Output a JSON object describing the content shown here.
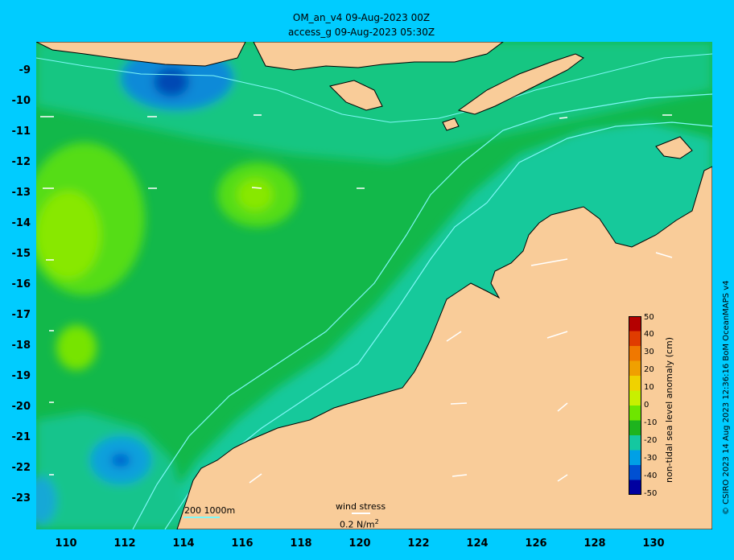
{
  "header": {
    "line1": "OM_an_v4  09-Aug-2023 00Z",
    "line2": "access_g 09-Aug-2023 05:30Z"
  },
  "axes": {
    "y_ticks": [
      "-9",
      "-10",
      "-11",
      "-12",
      "-13",
      "-14",
      "-15",
      "-16",
      "-17",
      "-18",
      "-19",
      "-20",
      "-21",
      "-22",
      "-23"
    ],
    "x_ticks": [
      "110",
      "112",
      "114",
      "116",
      "118",
      "120",
      "122",
      "124",
      "126",
      "128",
      "130"
    ]
  },
  "colorbar": {
    "title": "non-tidal sea level anomaly (cm)",
    "ticks": [
      "50",
      "40",
      "30",
      "20",
      "10",
      "0",
      "-10",
      "-20",
      "-30",
      "-40",
      "-50"
    ],
    "colors": [
      "#b40000",
      "#e03c00",
      "#f07800",
      "#f0a000",
      "#f0d200",
      "#c8f000",
      "#6ee600",
      "#1eb41e",
      "#14c8a0",
      "#00a0e6",
      "#0050d2",
      "#0000a0"
    ]
  },
  "legend": {
    "contours": "200  1000m",
    "wind_label": "wind stress",
    "wind_scale_text": "0.2 N/m",
    "wind_scale_sup": "2"
  },
  "credit": "© CSIRO 2023  14 Aug 2023 12:36:16 BoM OceanMAPS v4",
  "colors": {
    "frame": "#00ccff",
    "land": "#f9cc99",
    "sea_base": "#12b84a",
    "shelf": "#15c99b",
    "anomaly_low": "#0058cc",
    "anomaly_high": "#88e800",
    "isobath": "#7ff7f7"
  }
}
